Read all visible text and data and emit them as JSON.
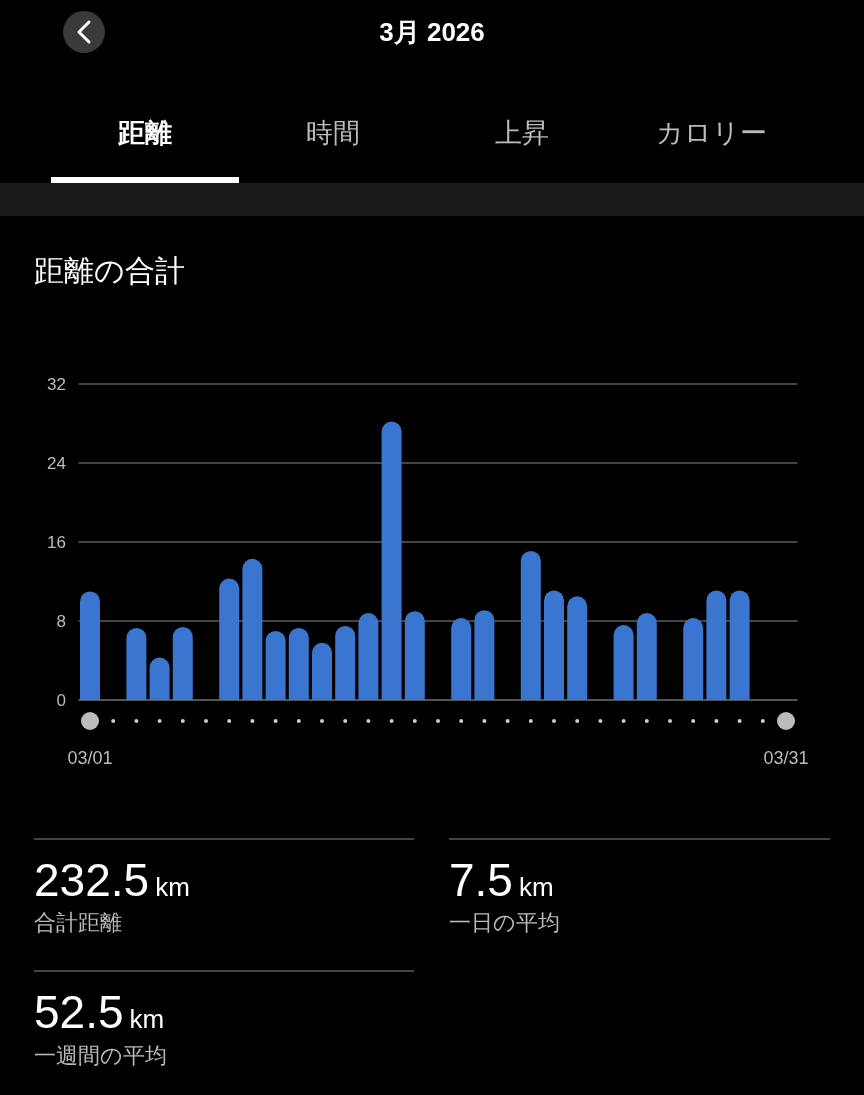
{
  "chart_data": {
    "type": "bar",
    "title": "距離の合計",
    "categories": [
      "03/01",
      null,
      null,
      null,
      null,
      null,
      null,
      null,
      null,
      null,
      null,
      null,
      null,
      null,
      null,
      null,
      null,
      null,
      null,
      null,
      null,
      null,
      null,
      null,
      null,
      null,
      null,
      null,
      null,
      null,
      "03/31"
    ],
    "values": [
      11.0,
      null,
      7.3,
      4.3,
      7.4,
      null,
      12.3,
      14.3,
      7.0,
      7.3,
      5.8,
      7.5,
      8.8,
      28.2,
      9.0,
      null,
      8.3,
      9.1,
      null,
      15.1,
      11.1,
      10.5,
      null,
      7.6,
      8.8,
      null,
      8.3,
      11.1,
      11.1,
      null,
      null
    ],
    "color": "#3a76cf",
    "ylim": [
      0,
      32
    ],
    "yticks": [
      0,
      8,
      16,
      24,
      32
    ],
    "grid": "y",
    "annotations": [
      "3月 2026",
      "距離",
      "時間",
      "上昇",
      "カロリー",
      "232.5",
      "km",
      "合計距離",
      "7.5",
      "km",
      "一日の平均",
      "52.5",
      "km",
      "一週間の平均"
    ]
  }
}
